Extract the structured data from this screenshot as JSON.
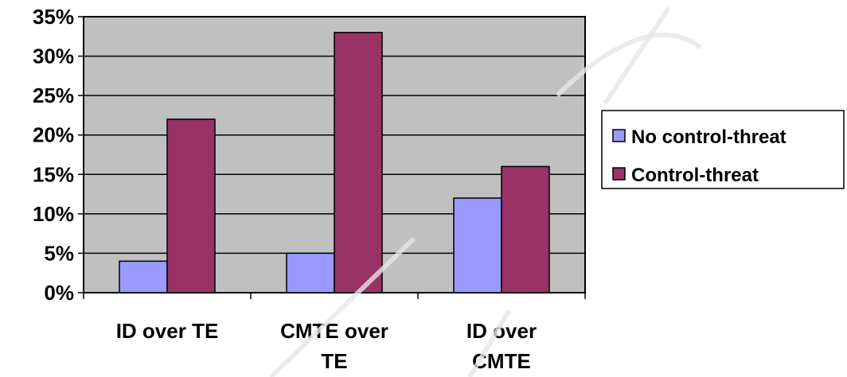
{
  "chart_data": {
    "type": "bar",
    "categories": [
      "ID over TE",
      "CMTE over TE",
      "ID over CMTE"
    ],
    "category_lines": [
      [
        "ID over TE"
      ],
      [
        "CMTE over",
        "TE"
      ],
      [
        "ID over",
        "CMTE"
      ]
    ],
    "series": [
      {
        "name": "No control-threat",
        "values": [
          4,
          5,
          12
        ],
        "color": "#9999ff"
      },
      {
        "name": "Control-threat",
        "values": [
          22,
          33,
          16
        ],
        "color": "#993366"
      }
    ],
    "yticks": [
      "0%",
      "5%",
      "10%",
      "15%",
      "20%",
      "25%",
      "30%",
      "35%"
    ],
    "ylim": [
      0,
      35
    ],
    "grid": true,
    "plot_background": "#c0c0c0",
    "legend_position": "right",
    "title": "",
    "xlabel": "",
    "ylabel": ""
  }
}
